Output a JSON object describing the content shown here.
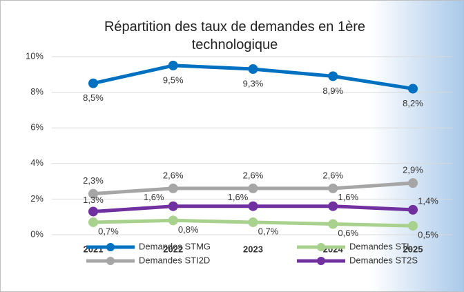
{
  "chart_data": {
    "type": "line",
    "title": "Répartition des taux de demandes en 1ère technologique",
    "categories": [
      "2021",
      "2022",
      "2023",
      "2024",
      "2025"
    ],
    "ylim": [
      0,
      10
    ],
    "yticks": [
      {
        "value": 0,
        "label": "0%"
      },
      {
        "value": 2,
        "label": "2%"
      },
      {
        "value": 4,
        "label": "4%"
      },
      {
        "value": 6,
        "label": "6%"
      },
      {
        "value": 8,
        "label": "8%"
      },
      {
        "value": 10,
        "label": "10%"
      }
    ],
    "grid": true,
    "legend": "bottom",
    "series": [
      {
        "name": "Demandes STMG",
        "color": "#0070c0",
        "values": [
          8.5,
          9.5,
          9.3,
          8.9,
          8.2
        ],
        "value_labels": [
          "8,5%",
          "9,5%",
          "9,3%",
          "8,9%",
          "8,2%"
        ]
      },
      {
        "name": "Demandes STI2D",
        "color": "#a6a6a6",
        "values": [
          2.3,
          2.6,
          2.6,
          2.6,
          2.9
        ],
        "value_labels": [
          "2,3%",
          "2,6%",
          "2,6%",
          "2,6%",
          "2,9%"
        ]
      },
      {
        "name": "Demandes STL",
        "color": "#a9d18e",
        "values": [
          0.7,
          0.8,
          0.7,
          0.6,
          0.5
        ],
        "value_labels": [
          "0,7%",
          "0,8%",
          "0,7%",
          "0,6%",
          "0,5%"
        ]
      },
      {
        "name": "Demandes ST2S",
        "color": "#7030a0",
        "values": [
          1.3,
          1.6,
          1.6,
          1.6,
          1.4
        ],
        "value_labels": [
          "1,3%",
          "1,6%",
          "1,6%",
          "1,6%",
          "1,4%"
        ]
      }
    ]
  }
}
